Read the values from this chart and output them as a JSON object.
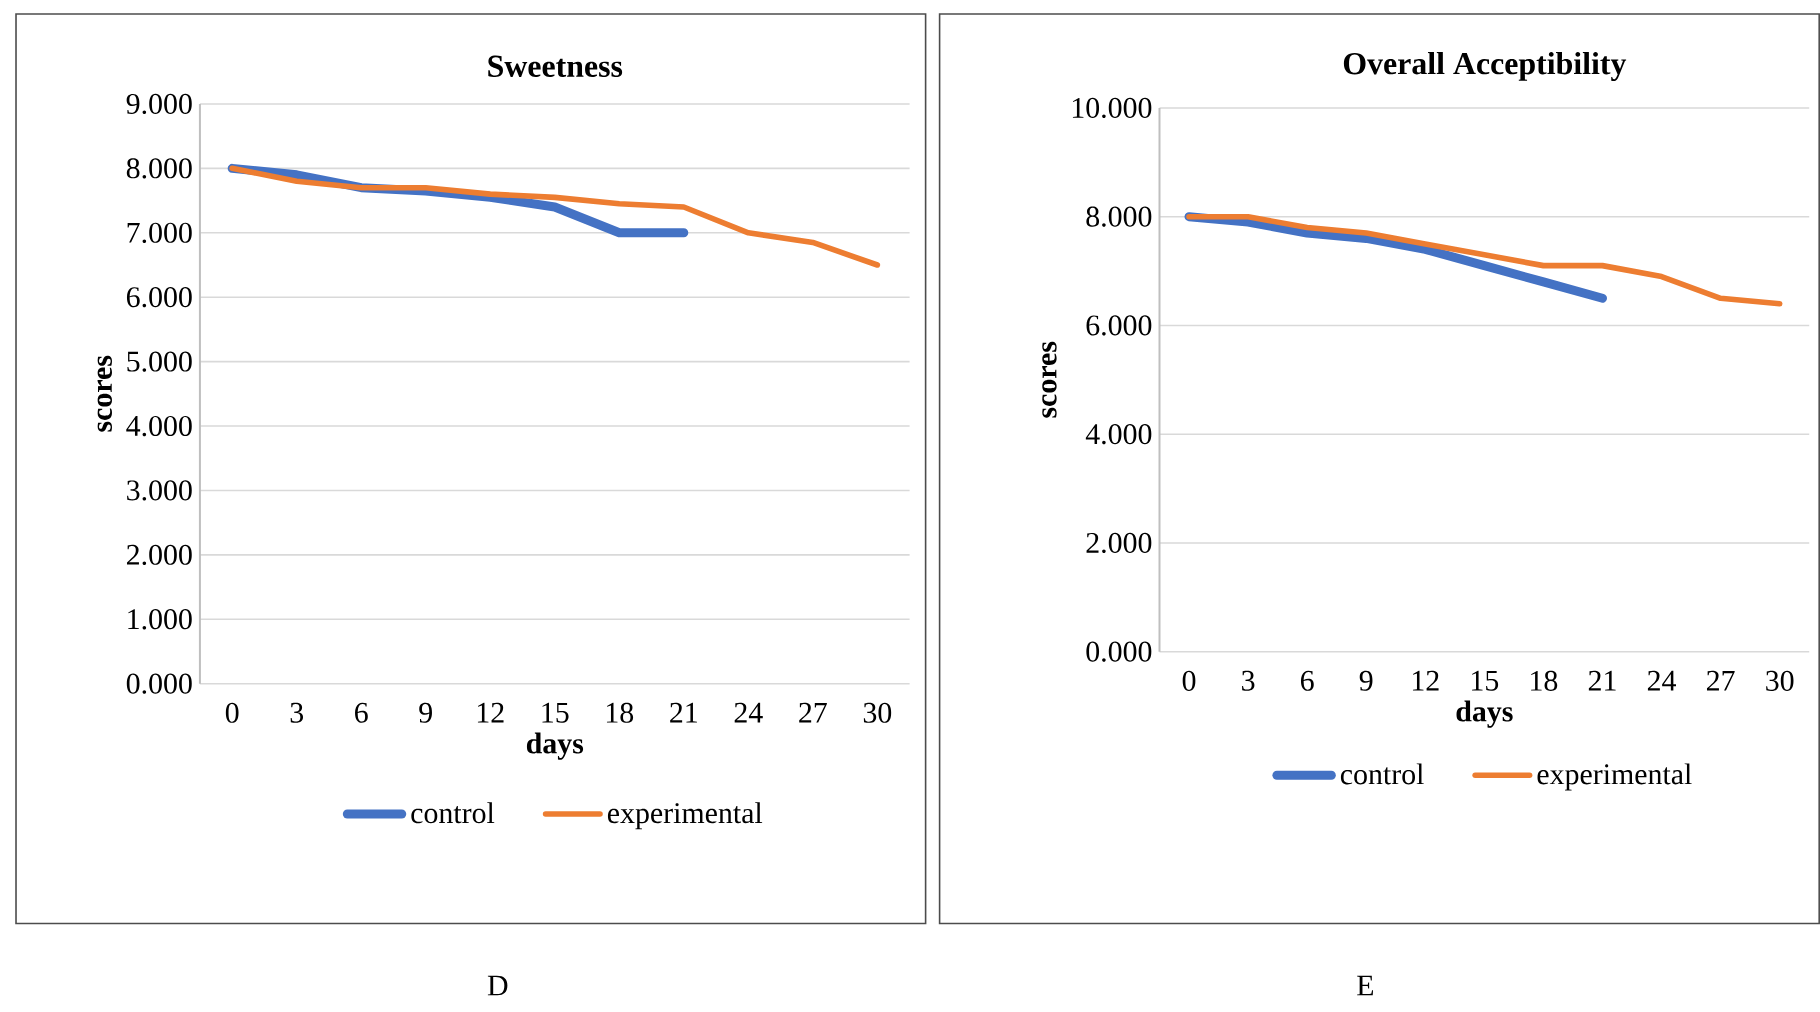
{
  "chart_data": [
    {
      "type": "line",
      "title": "Sweetness",
      "xlabel": "days",
      "ylabel": "scores",
      "categories": [
        "0",
        "3",
        "6",
        "9",
        "12",
        "15",
        "18",
        "21",
        "24",
        "27",
        "30"
      ],
      "series": [
        {
          "name": "control",
          "color": "#4472c4",
          "values": [
            8.0,
            7.9,
            7.7,
            7.65,
            7.55,
            7.4,
            7.0,
            7.0,
            null,
            null,
            null
          ]
        },
        {
          "name": "experimental",
          "color": "#ed7d31",
          "values": [
            8.0,
            7.8,
            7.7,
            7.7,
            7.6,
            7.55,
            7.45,
            7.4,
            7.0,
            6.85,
            6.5
          ]
        }
      ],
      "ylim": [
        0,
        9
      ],
      "yticks": [
        {
          "value": 0,
          "label": "0.000"
        },
        {
          "value": 1,
          "label": "1.000"
        },
        {
          "value": 2,
          "label": "2.000"
        },
        {
          "value": 3,
          "label": "3.000"
        },
        {
          "value": 4,
          "label": "4.000"
        },
        {
          "value": 5,
          "label": "5.000"
        },
        {
          "value": 6,
          "label": "6.000"
        },
        {
          "value": 7,
          "label": "7.000"
        },
        {
          "value": 8,
          "label": "8.000"
        },
        {
          "value": 9,
          "label": "9.000"
        }
      ],
      "grid": "y",
      "legend": "bottom",
      "annotations": [
        "D"
      ]
    },
    {
      "type": "line",
      "title": "Overall Acceptibility",
      "xlabel": "days",
      "ylabel": "scores",
      "categories": [
        "0",
        "3",
        "6",
        "9",
        "12",
        "15",
        "18",
        "21",
        "24",
        "27",
        "30"
      ],
      "series": [
        {
          "name": "control",
          "color": "#4472c4",
          "values": [
            8.0,
            7.9,
            7.7,
            7.6,
            7.4,
            7.1,
            6.8,
            6.5,
            null,
            null,
            null
          ]
        },
        {
          "name": "experimental",
          "color": "#ed7d31",
          "values": [
            8.0,
            8.0,
            7.8,
            7.7,
            7.5,
            7.3,
            7.1,
            7.1,
            6.9,
            6.5,
            6.4
          ]
        }
      ],
      "ylim": [
        0,
        10
      ],
      "yticks": [
        {
          "value": 0,
          "label": "0.000"
        },
        {
          "value": 2,
          "label": "2.000"
        },
        {
          "value": 4,
          "label": "4.000"
        },
        {
          "value": 6,
          "label": "6.000"
        },
        {
          "value": 8,
          "label": "8.000"
        },
        {
          "value": 10,
          "label": "10.000"
        }
      ],
      "grid": "y",
      "legend": "bottom",
      "annotations": [
        "E"
      ]
    }
  ]
}
